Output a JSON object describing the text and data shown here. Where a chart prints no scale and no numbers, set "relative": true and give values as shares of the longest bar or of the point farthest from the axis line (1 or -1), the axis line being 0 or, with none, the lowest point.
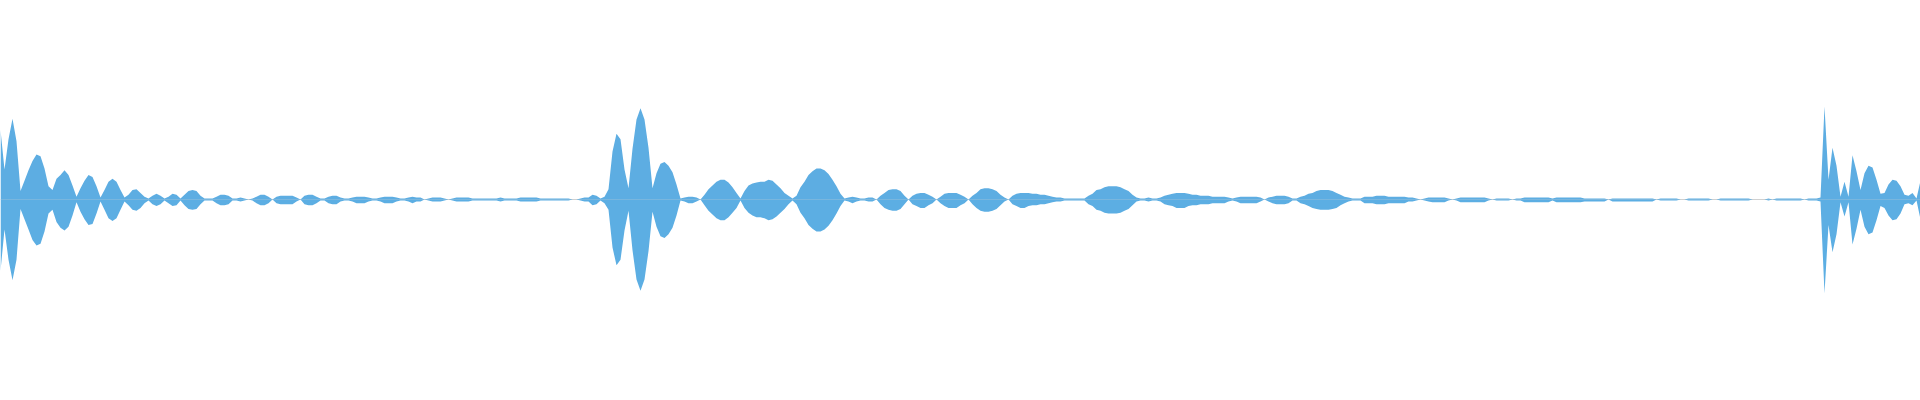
{
  "chart_data": {
    "type": "area",
    "relative": true,
    "categories": [
      null,
      null,
      null,
      null,
      null,
      null,
      null,
      null,
      null,
      null,
      null,
      null,
      null,
      null,
      null,
      null,
      null,
      null,
      null,
      null,
      null,
      null,
      null,
      null,
      null,
      null,
      null,
      null,
      null,
      null,
      null,
      null,
      null,
      null,
      null,
      null,
      null,
      null,
      null,
      null,
      null,
      null,
      null,
      null,
      null,
      null,
      null,
      null,
      null,
      null,
      null,
      null,
      null,
      null,
      null,
      null,
      null,
      null,
      null,
      null,
      null,
      null,
      null,
      null,
      null,
      null,
      null,
      null,
      null,
      null,
      null,
      null,
      null,
      null,
      null,
      null,
      null,
      null,
      null,
      null,
      null,
      null,
      null,
      null,
      null,
      null,
      null,
      null,
      null,
      null,
      null,
      null,
      null,
      null,
      null,
      null,
      null,
      null,
      null,
      null,
      null,
      null,
      null,
      null,
      null,
      null,
      null,
      null,
      null,
      null,
      null,
      null,
      null,
      null,
      null,
      null,
      null,
      null,
      null,
      null,
      null,
      null,
      null,
      null,
      null,
      null,
      null,
      null,
      null,
      null,
      null,
      null,
      null,
      null,
      null,
      null,
      null,
      null,
      null,
      null,
      null,
      null,
      null,
      null,
      null,
      null,
      null,
      null,
      null,
      null,
      null,
      null,
      null,
      null,
      null,
      null,
      null,
      null,
      null,
      null,
      null,
      null,
      null,
      null,
      null,
      null,
      null,
      null,
      null,
      null,
      null,
      null,
      null,
      null,
      null,
      null,
      null,
      null,
      null,
      null,
      null,
      null,
      null,
      null,
      null,
      null,
      null,
      null,
      null,
      null,
      null,
      null,
      null,
      null,
      null,
      null,
      null,
      null,
      null,
      null,
      null,
      null,
      null,
      null,
      null,
      null,
      null,
      null,
      null,
      null,
      null,
      null,
      null,
      null,
      null,
      null,
      null,
      null,
      null,
      null,
      null,
      null,
      null,
      null,
      null,
      null,
      null,
      null,
      null,
      null,
      null,
      null,
      null,
      null,
      null,
      null,
      null,
      null,
      null,
      null,
      null,
      null,
      null,
      null,
      null,
      null,
      null,
      null,
      null,
      null,
      null,
      null,
      null,
      null,
      null,
      null,
      null,
      null,
      null,
      null,
      null,
      null,
      null,
      null,
      null,
      null,
      null,
      null,
      null,
      null,
      null,
      null,
      null,
      null,
      null,
      null,
      null,
      null,
      null,
      null,
      null,
      null,
      null,
      null,
      null,
      null,
      null,
      null,
      null,
      null,
      null,
      null,
      null,
      null,
      null,
      null,
      null,
      null,
      null,
      null,
      null,
      null,
      null,
      null,
      null,
      null,
      null,
      null,
      null,
      null,
      null,
      null,
      null,
      null,
      null,
      null,
      null,
      null,
      null,
      null,
      null,
      null,
      null,
      null,
      null,
      null,
      null,
      null,
      null,
      null,
      null,
      null,
      null,
      null,
      null,
      null,
      null,
      null,
      null,
      null,
      null,
      null,
      null,
      null,
      null,
      null,
      null,
      null,
      null,
      null,
      null,
      null,
      null,
      null,
      null,
      null,
      null,
      null,
      null,
      null,
      null,
      null,
      null,
      null,
      null,
      null,
      null,
      null,
      null,
      null,
      null,
      null,
      null,
      null,
      null,
      null,
      null,
      null,
      null,
      null,
      null,
      null,
      null,
      null,
      null,
      null,
      null,
      null,
      null,
      null,
      null,
      null,
      null,
      null,
      null,
      null,
      null,
      null,
      null,
      null,
      null,
      null,
      null,
      null,
      null,
      null,
      null,
      null,
      null,
      null,
      null,
      null,
      null,
      null,
      null,
      null,
      null,
      null,
      null,
      null,
      null,
      null,
      null,
      null,
      null,
      null,
      null,
      null,
      null,
      null,
      null,
      null,
      null,
      null,
      null,
      null,
      null,
      null,
      null,
      null,
      null,
      null,
      null,
      null,
      null,
      null,
      null,
      null,
      null,
      null,
      null,
      null,
      null,
      null,
      null,
      null,
      null,
      null,
      null,
      null,
      null,
      null,
      null,
      null,
      null,
      null,
      null,
      null,
      null,
      null,
      null,
      null,
      null,
      null,
      null,
      null,
      null,
      null,
      null,
      null,
      null
    ],
    "series": [
      {
        "color": "#5dade2",
        "values": [
          0.74,
          0.32,
          0.64,
          0.86,
          0.62,
          0.09,
          0.2,
          0.31,
          0.41,
          0.48,
          0.46,
          0.33,
          0.14,
          0.1,
          0.22,
          0.26,
          0.31,
          0.26,
          0.15,
          0.03,
          0.12,
          0.2,
          0.26,
          0.24,
          0.14,
          0.02,
          0.1,
          0.19,
          0.22,
          0.19,
          0.1,
          0.02,
          0.05,
          0.1,
          0.11,
          0.07,
          0.03,
          0.01,
          0.04,
          0.06,
          0.04,
          0.01,
          0.03,
          0.06,
          0.05,
          0.01,
          0.05,
          0.09,
          0.1,
          0.09,
          0.04,
          0.01,
          0.01,
          0.01,
          0.03,
          0.05,
          0.05,
          0.04,
          0.01,
          0.01,
          0.02,
          0.01,
          0,
          0.01,
          0.03,
          0.05,
          0.05,
          0.03,
          0,
          0.03,
          0.04,
          0.04,
          0.04,
          0.04,
          0.02,
          0,
          0.04,
          0.05,
          0.05,
          0.03,
          0.01,
          0.01,
          0.03,
          0.04,
          0.04,
          0.02,
          0.01,
          0.01,
          0.02,
          0.03,
          0.03,
          0.03,
          0.02,
          0.01,
          0.01,
          0.02,
          0.03,
          0.03,
          0.03,
          0.02,
          0.01,
          0.01,
          0.02,
          0.03,
          0.02,
          0.02,
          0,
          0.01,
          0.02,
          0.02,
          0.02,
          0.01,
          0,
          0.01,
          0.02,
          0.02,
          0.02,
          0.02,
          0.01,
          0.01,
          0.01,
          0.01,
          0.01,
          0.01,
          0.01,
          0.02,
          0.01,
          0.01,
          0.01,
          0.01,
          0.02,
          0.02,
          0.02,
          0.02,
          0.02,
          0.01,
          0.01,
          0.01,
          0.01,
          0.01,
          0.01,
          0.01,
          0.01,
          0,
          0,
          0.01,
          0.02,
          0.02,
          0.05,
          0.04,
          0.01,
          0.03,
          0.11,
          0.51,
          0.7,
          0.64,
          0.32,
          0.12,
          0.54,
          0.85,
          0.97,
          0.85,
          0.55,
          0.12,
          0.28,
          0.38,
          0.4,
          0.36,
          0.29,
          0.16,
          0.01,
          0.02,
          0.03,
          0.03,
          0.02,
          0,
          0.05,
          0.11,
          0.15,
          0.19,
          0.21,
          0.21,
          0.18,
          0.13,
          0.07,
          0.01,
          0.09,
          0.15,
          0.17,
          0.18,
          0.19,
          0.19,
          0.21,
          0.2,
          0.16,
          0.12,
          0.07,
          0.04,
          0.01,
          0.04,
          0.13,
          0.19,
          0.26,
          0.3,
          0.33,
          0.33,
          0.31,
          0.27,
          0.21,
          0.14,
          0.06,
          0.01,
          0.02,
          0.03,
          0.02,
          0.01,
          0.01,
          0.02,
          0.02,
          0,
          0.04,
          0.07,
          0.1,
          0.11,
          0.11,
          0.09,
          0.04,
          0,
          0.04,
          0.06,
          0.07,
          0.07,
          0.05,
          0.03,
          0,
          0.03,
          0.06,
          0.07,
          0.07,
          0.07,
          0.05,
          0.03,
          0,
          0.04,
          0.07,
          0.11,
          0.12,
          0.12,
          0.11,
          0.09,
          0.05,
          0.02,
          0,
          0.04,
          0.06,
          0.07,
          0.07,
          0.07,
          0.06,
          0.06,
          0.05,
          0.05,
          0.04,
          0.03,
          0.02,
          0.02,
          0.01,
          0.01,
          0.01,
          0.01,
          0.01,
          0.01,
          0.04,
          0.06,
          0.1,
          0.11,
          0.13,
          0.14,
          0.14,
          0.14,
          0.13,
          0.11,
          0.09,
          0.05,
          0.02,
          0.01,
          0.01,
          0.02,
          0.01,
          0.01,
          0.02,
          0.04,
          0.05,
          0.06,
          0.07,
          0.07,
          0.07,
          0.06,
          0.05,
          0.05,
          0.04,
          0.04,
          0.04,
          0.03,
          0.03,
          0.03,
          0.03,
          0.02,
          0.01,
          0.02,
          0.03,
          0.03,
          0.03,
          0.03,
          0.03,
          0.02,
          0,
          0.02,
          0.03,
          0.04,
          0.04,
          0.04,
          0.03,
          0.01,
          0.01,
          0.03,
          0.04,
          0.06,
          0.07,
          0.09,
          0.1,
          0.1,
          0.1,
          0.09,
          0.07,
          0.05,
          0.03,
          0.02,
          0.01,
          0.01,
          0.01,
          0.03,
          0.03,
          0.03,
          0.04,
          0.04,
          0.04,
          0.03,
          0.03,
          0.03,
          0.03,
          0.03,
          0.02,
          0.02,
          0.01,
          0,
          0.01,
          0.02,
          0.02,
          0.02,
          0.02,
          0.02,
          0.01,
          0,
          0.01,
          0.02,
          0.02,
          0.02,
          0.02,
          0.02,
          0.02,
          0.02,
          0.01,
          0,
          0.01,
          0.01,
          0.01,
          0.01,
          0,
          0.01,
          0.01,
          0.02,
          0.02,
          0.02,
          0.02,
          0.02,
          0.02,
          0.02,
          0.01,
          0.02,
          0.02,
          0.02,
          0.02,
          0.02,
          0.02,
          0.02,
          0.01,
          0.01,
          0.01,
          0.01,
          0.01,
          0.01,
          0,
          0.01,
          0.01,
          0.01,
          0.01,
          0.01,
          0.01,
          0.01,
          0.01,
          0.01,
          0.01,
          0.01,
          0,
          0.01,
          0.01,
          0.01,
          0.01,
          0.01,
          0,
          0,
          0.01,
          0.01,
          0.01,
          0.01,
          0.01,
          0.01,
          0,
          0,
          0.01,
          0.01,
          0.01,
          0.01,
          0.01,
          0.01,
          0.01,
          0.01,
          0,
          0,
          0,
          0,
          0.01,
          0,
          0.01,
          0.01,
          0.01,
          0.01,
          0.01,
          0.01,
          0.01,
          0,
          0.01,
          0.01,
          0.01,
          0.02,
          0.99,
          0.21,
          0.55,
          0.36,
          0.03,
          0.19,
          0.03,
          0.47,
          0.3,
          0.1,
          0.28,
          0.36,
          0.34,
          0.21,
          0.06,
          0.07,
          0.16,
          0.21,
          0.2,
          0.14,
          0.05,
          0.04,
          0.07,
          0.01,
          0.2
        ]
      },
      {
        "color": "#5caee3",
        "values": [
          -0.76,
          -0.32,
          -0.64,
          -0.86,
          -0.64,
          -0.1,
          -0.21,
          -0.32,
          -0.43,
          -0.49,
          -0.47,
          -0.34,
          -0.15,
          -0.11,
          -0.24,
          -0.3,
          -0.33,
          -0.29,
          -0.17,
          -0.03,
          -0.13,
          -0.21,
          -0.27,
          -0.26,
          -0.15,
          -0.02,
          -0.11,
          -0.2,
          -0.23,
          -0.2,
          -0.11,
          -0.02,
          -0.06,
          -0.11,
          -0.12,
          -0.09,
          -0.04,
          -0.01,
          -0.05,
          -0.07,
          -0.05,
          -0.01,
          -0.04,
          -0.07,
          -0.06,
          -0.01,
          -0.06,
          -0.1,
          -0.11,
          -0.1,
          -0.05,
          -0.01,
          -0.01,
          -0.01,
          -0.04,
          -0.06,
          -0.06,
          -0.05,
          -0.01,
          -0.01,
          -0.02,
          -0.01,
          0,
          -0.01,
          -0.04,
          -0.06,
          -0.06,
          -0.04,
          0,
          -0.04,
          -0.05,
          -0.05,
          -0.05,
          -0.05,
          -0.02,
          0,
          -0.05,
          -0.06,
          -0.06,
          -0.04,
          -0.01,
          -0.01,
          -0.04,
          -0.05,
          -0.05,
          -0.02,
          -0.01,
          -0.01,
          -0.02,
          -0.04,
          -0.04,
          -0.04,
          -0.02,
          -0.01,
          -0.01,
          -0.02,
          -0.04,
          -0.04,
          -0.04,
          -0.02,
          -0.01,
          -0.01,
          -0.02,
          -0.04,
          -0.02,
          -0.02,
          0,
          -0.01,
          -0.02,
          -0.02,
          -0.02,
          -0.01,
          0,
          -0.01,
          -0.02,
          -0.02,
          -0.02,
          -0.02,
          -0.01,
          -0.01,
          -0.01,
          -0.01,
          -0.01,
          -0.01,
          -0.01,
          -0.02,
          -0.01,
          -0.01,
          -0.01,
          -0.01,
          -0.02,
          -0.02,
          -0.02,
          -0.02,
          -0.02,
          -0.01,
          -0.01,
          -0.01,
          -0.01,
          -0.01,
          -0.01,
          -0.01,
          -0.01,
          0,
          0,
          -0.01,
          -0.02,
          -0.02,
          -0.06,
          -0.05,
          -0.01,
          -0.04,
          -0.11,
          -0.51,
          -0.7,
          -0.64,
          -0.33,
          -0.12,
          -0.54,
          -0.85,
          -0.97,
          -0.85,
          -0.55,
          -0.13,
          -0.29,
          -0.39,
          -0.41,
          -0.37,
          -0.3,
          -0.17,
          -0.01,
          -0.02,
          -0.04,
          -0.04,
          -0.02,
          0,
          -0.06,
          -0.12,
          -0.16,
          -0.2,
          -0.22,
          -0.22,
          -0.19,
          -0.14,
          -0.09,
          -0.01,
          -0.09,
          -0.14,
          -0.17,
          -0.19,
          -0.19,
          -0.2,
          -0.22,
          -0.21,
          -0.18,
          -0.14,
          -0.1,
          -0.05,
          -0.01,
          -0.05,
          -0.14,
          -0.2,
          -0.27,
          -0.31,
          -0.34,
          -0.34,
          -0.32,
          -0.28,
          -0.22,
          -0.15,
          -0.07,
          -0.01,
          -0.02,
          -0.04,
          -0.02,
          -0.01,
          -0.01,
          -0.02,
          -0.02,
          0,
          -0.05,
          -0.09,
          -0.11,
          -0.12,
          -0.12,
          -0.1,
          -0.05,
          0,
          -0.05,
          -0.07,
          -0.09,
          -0.09,
          -0.06,
          -0.04,
          0,
          -0.04,
          -0.07,
          -0.09,
          -0.09,
          -0.09,
          -0.06,
          -0.04,
          0,
          -0.05,
          -0.09,
          -0.12,
          -0.13,
          -0.13,
          -0.12,
          -0.1,
          -0.06,
          -0.02,
          0,
          -0.05,
          -0.07,
          -0.09,
          -0.09,
          -0.07,
          -0.06,
          -0.06,
          -0.05,
          -0.05,
          -0.04,
          -0.03,
          -0.02,
          -0.02,
          -0.01,
          -0.01,
          -0.01,
          -0.01,
          -0.01,
          -0.01,
          -0.05,
          -0.07,
          -0.11,
          -0.12,
          -0.14,
          -0.15,
          -0.15,
          -0.15,
          -0.14,
          -0.12,
          -0.1,
          -0.06,
          -0.02,
          -0.01,
          -0.01,
          -0.02,
          -0.01,
          -0.01,
          -0.02,
          -0.05,
          -0.06,
          -0.07,
          -0.09,
          -0.09,
          -0.09,
          -0.07,
          -0.06,
          -0.06,
          -0.05,
          -0.05,
          -0.05,
          -0.04,
          -0.04,
          -0.04,
          -0.04,
          -0.02,
          -0.01,
          -0.02,
          -0.04,
          -0.04,
          -0.04,
          -0.04,
          -0.04,
          -0.02,
          0,
          -0.02,
          -0.04,
          -0.05,
          -0.05,
          -0.05,
          -0.04,
          -0.01,
          -0.01,
          -0.04,
          -0.05,
          -0.07,
          -0.09,
          -0.1,
          -0.11,
          -0.11,
          -0.11,
          -0.1,
          -0.09,
          -0.06,
          -0.04,
          -0.02,
          -0.01,
          -0.01,
          -0.01,
          -0.04,
          -0.04,
          -0.04,
          -0.05,
          -0.05,
          -0.05,
          -0.04,
          -0.04,
          -0.04,
          -0.04,
          -0.04,
          -0.02,
          -0.02,
          -0.01,
          0,
          -0.01,
          -0.02,
          -0.03,
          -0.03,
          -0.03,
          -0.03,
          -0.01,
          0,
          -0.01,
          -0.03,
          -0.03,
          -0.03,
          -0.03,
          -0.03,
          -0.03,
          -0.03,
          -0.01,
          0,
          -0.01,
          -0.01,
          -0.01,
          -0.01,
          0,
          -0.01,
          -0.01,
          -0.03,
          -0.03,
          -0.03,
          -0.03,
          -0.03,
          -0.03,
          -0.03,
          -0.01,
          -0.03,
          -0.03,
          -0.03,
          -0.03,
          -0.03,
          -0.03,
          -0.03,
          -0.02,
          -0.02,
          -0.02,
          -0.02,
          -0.02,
          -0.02,
          0,
          -0.02,
          -0.02,
          -0.02,
          -0.02,
          -0.02,
          -0.02,
          -0.02,
          -0.02,
          -0.02,
          -0.02,
          -0.02,
          0,
          -0.01,
          -0.01,
          -0.01,
          -0.01,
          -0.01,
          0,
          0,
          -0.01,
          -0.01,
          -0.01,
          -0.01,
          -0.01,
          -0.01,
          0,
          0,
          -0.01,
          -0.01,
          -0.01,
          -0.01,
          -0.01,
          -0.01,
          -0.01,
          -0.01,
          0,
          0,
          0,
          0,
          -0.01,
          0,
          -0.01,
          -0.01,
          -0.01,
          -0.01,
          -0.01,
          -0.01,
          -0.01,
          0,
          -0.01,
          -0.01,
          -0.01,
          -0.02,
          -1,
          -0.27,
          -0.56,
          -0.37,
          -0.03,
          -0.18,
          -0.03,
          -0.48,
          -0.31,
          -0.11,
          -0.29,
          -0.37,
          -0.35,
          -0.22,
          -0.07,
          -0.09,
          -0.17,
          -0.22,
          -0.21,
          -0.15,
          -0.05,
          -0.04,
          -0.06,
          -0.01,
          -0.21
        ]
      }
    ]
  }
}
